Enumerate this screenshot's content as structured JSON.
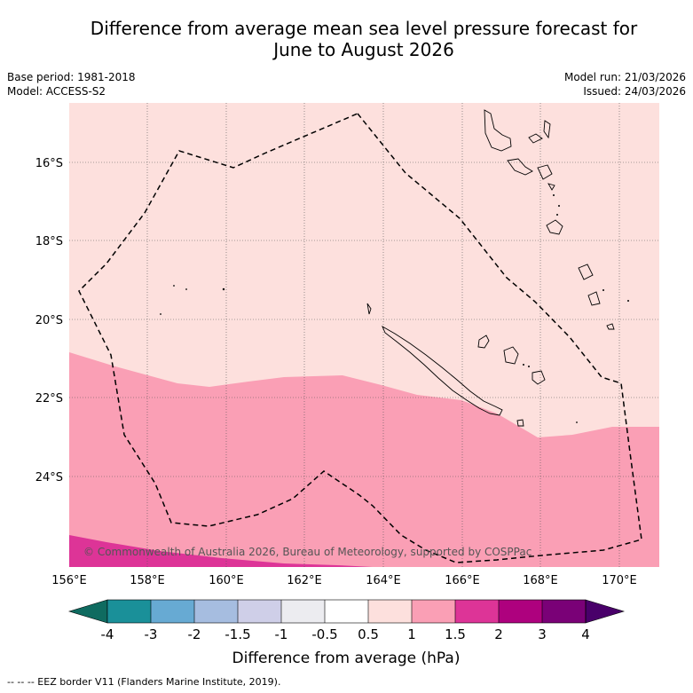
{
  "title_line1": "Difference from average mean sea level pressure forecast for",
  "title_line2": "June to August 2026",
  "base_period": "Base period: 1981-2018",
  "model": "Model: ACCESS-S2",
  "model_run": "Model run: 21/03/2026",
  "issued": "Issued: 24/03/2026",
  "copyright": "© Commonwealth of Australia 2026, Bureau of Meteorology, supported by COSPPac",
  "lat_labels": [
    "16°S",
    "18°S",
    "20°S",
    "22°S",
    "24°S"
  ],
  "lon_labels": [
    "156°E",
    "158°E",
    "160°E",
    "162°E",
    "164°E",
    "166°E",
    "168°E",
    "170°E"
  ],
  "colorbar": {
    "label": "Difference from average (hPa)",
    "ticks": [
      "-4",
      "-3",
      "-2",
      "-1.5",
      "-1",
      "-0.5",
      "0.5",
      "1",
      "1.5",
      "2",
      "3",
      "4"
    ],
    "colors": [
      "#0f6b60",
      "#1a9099",
      "#67aad3",
      "#a6bde0",
      "#cfcfe8",
      "#ececf0",
      "#ffffff",
      "#fde0dd",
      "#fa9fb5",
      "#dd3497",
      "#ae017e",
      "#7a0177",
      "#49006a"
    ]
  },
  "legend_footer": "--  --  -- EEZ border V11 (Flanders Marine Institute, 2019).",
  "chart_data": {
    "type": "heatmap",
    "variable": "Difference from average mean sea level pressure (hPa)",
    "season": "June to August 2026",
    "region": {
      "lon_range": [
        155.9,
        171
      ],
      "lat_range": [
        -26.3,
        -14.8
      ]
    },
    "categories_shown": [
      {
        "range": "0.5 to 1",
        "area": "north of about 21-23°S"
      },
      {
        "range": "1 to 1.5",
        "area": "south of about 21-23°S"
      },
      {
        "range": "1.5 to 2",
        "area": "far south-west, about 25.5-26°S near 156-163°E"
      }
    ]
  }
}
